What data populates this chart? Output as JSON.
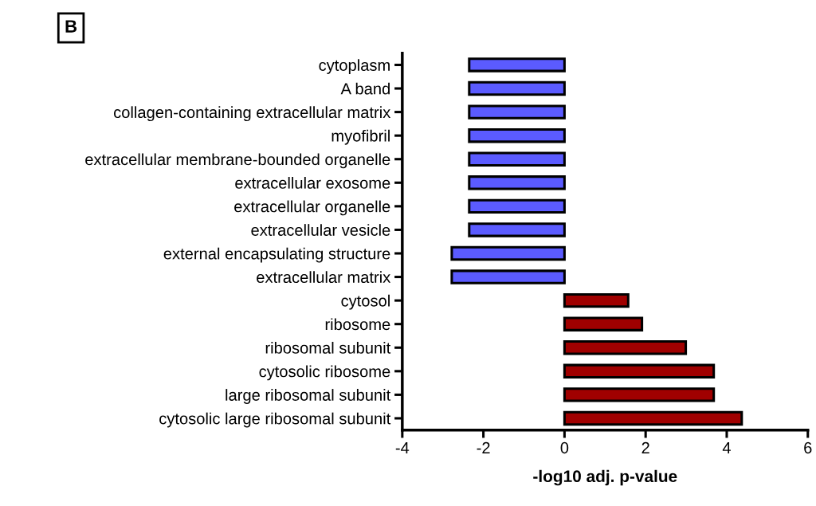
{
  "chart_data": {
    "type": "bar",
    "orientation": "horizontal",
    "categories": [
      "cytoplasm",
      "A band",
      "collagen-containing extracellular matrix",
      "myofibril",
      "extracellular membrane-bounded organelle",
      "extracellular exosome",
      "extracellular organelle",
      "extracellular vesicle",
      "external encapsulating structure",
      "extracellular matrix",
      "cytosol",
      "ribosome",
      "ribosomal subunit",
      "cytosolic ribosome",
      "large ribosomal subunit",
      "cytosolic large ribosomal subunit"
    ],
    "values": [
      -2.35,
      -2.35,
      -2.35,
      -2.35,
      -2.35,
      -2.35,
      -2.35,
      -2.35,
      -2.78,
      -2.78,
      1.57,
      1.91,
      2.99,
      3.68,
      3.68,
      4.37
    ],
    "colors": [
      "#5b5bff",
      "#5b5bff",
      "#5b5bff",
      "#5b5bff",
      "#5b5bff",
      "#5b5bff",
      "#5b5bff",
      "#5b5bff",
      "#5b5bff",
      "#5b5bff",
      "#a00000",
      "#a00000",
      "#a00000",
      "#a00000",
      "#a00000",
      "#a00000"
    ],
    "xlabel": "-log10 adj. p-value",
    "xlim": [
      -4,
      6
    ],
    "xticks": [
      -4,
      -2,
      0,
      2,
      4,
      6
    ],
    "annotations": [
      "B"
    ],
    "grid": false,
    "legend": false
  }
}
